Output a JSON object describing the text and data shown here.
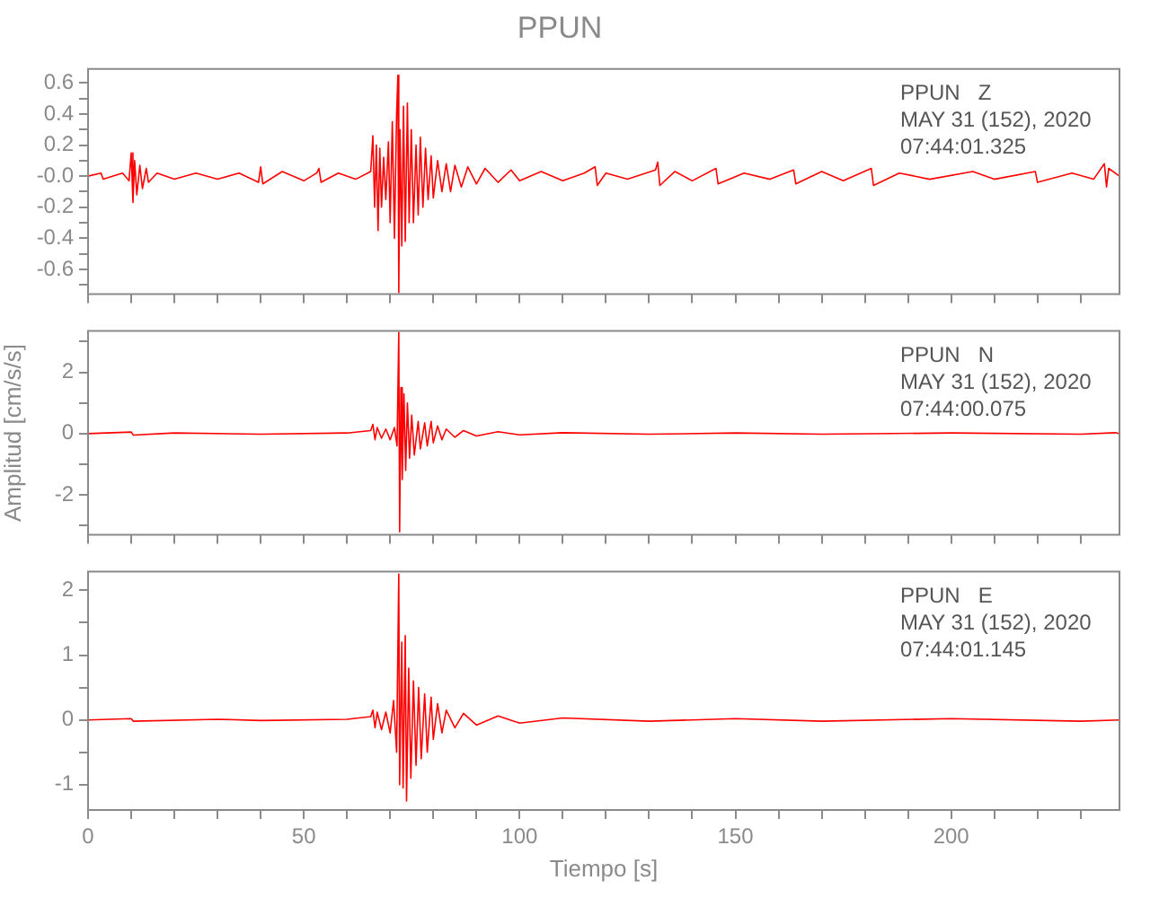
{
  "chart_data": [
    {
      "type": "line",
      "title": "PPUN",
      "tick_labels": "y",
      "grid": false,
      "legend": false,
      "marker": "none",
      "line_style": "solid",
      "annotations": [
        "PPUN   Z",
        "MAY 31 (152), 2020",
        "07:44:01.325"
      ],
      "xlim": [
        0,
        239
      ],
      "xticks": [
        0,
        {
          "value": 10,
          "label": null
        },
        {
          "value": 20,
          "label": null
        },
        {
          "value": 30,
          "label": null
        },
        {
          "value": 40,
          "label": null
        },
        50,
        {
          "value": 60,
          "label": null
        },
        {
          "value": 70,
          "label": null
        },
        {
          "value": 80,
          "label": null
        },
        {
          "value": 90,
          "label": null
        },
        100,
        {
          "value": 110,
          "label": null
        },
        {
          "value": 120,
          "label": null
        },
        {
          "value": 130,
          "label": null
        },
        {
          "value": 140,
          "label": null
        },
        150,
        {
          "value": 160,
          "label": null
        },
        {
          "value": 170,
          "label": null
        },
        {
          "value": 180,
          "label": null
        },
        {
          "value": 190,
          "label": null
        },
        200,
        {
          "value": 210,
          "label": null
        },
        {
          "value": 220,
          "label": null
        },
        {
          "value": 230,
          "label": null
        }
      ],
      "ylim": [
        -0.76,
        0.69
      ],
      "yticks": [
        {
          "value": -0.7,
          "label": null
        },
        -0.6,
        {
          "value": -0.5,
          "label": null
        },
        -0.4,
        {
          "value": -0.3,
          "label": null
        },
        -0.2,
        {
          "value": -0.1,
          "label": null
        },
        {
          "value": 0,
          "label": "-0.0"
        },
        {
          "value": 0.1,
          "label": null
        },
        0.2,
        {
          "value": 0.3,
          "label": null
        },
        0.4,
        {
          "value": 0.5,
          "label": null
        },
        0.6
      ],
      "series": [
        {
          "color": "#ff0000",
          "x": [
            0,
            3,
            3.5,
            8,
            9.5,
            10,
            10.4,
            10.8,
            11.3,
            12,
            12.6,
            13.5,
            14,
            16,
            20,
            25,
            30,
            35,
            39.5,
            40,
            40.5,
            45,
            50,
            53,
            53.5,
            54,
            58,
            62,
            65.5,
            66,
            66.4,
            66.8,
            67.2,
            67.6,
            68,
            68.5,
            69,
            69.6,
            70,
            70.5,
            71,
            71.5,
            71.8,
            72,
            72.3,
            72.7,
            73.1,
            73.5,
            74,
            74.4,
            74.9,
            75.4,
            76,
            76.5,
            77,
            77.6,
            78.2,
            78.8,
            79.5,
            80,
            81,
            82,
            83,
            84,
            85,
            86.5,
            88,
            90,
            92,
            95,
            98,
            100,
            105,
            110,
            115,
            117.5,
            118,
            120,
            125,
            131.5,
            132,
            132.5,
            136,
            140,
            145.5,
            146,
            152,
            158,
            163.5,
            164,
            170,
            175,
            181.5,
            182,
            188,
            195,
            205,
            210,
            219.5,
            220,
            228,
            233,
            235.5,
            236,
            236.5,
            239
          ],
          "values": [
            0,
            0.02,
            -0.02,
            0.02,
            -0.03,
            0.15,
            -0.17,
            0.1,
            -0.12,
            0.07,
            -0.08,
            0.05,
            -0.04,
            0.02,
            -0.02,
            0.02,
            -0.02,
            0.02,
            -0.04,
            0.06,
            -0.05,
            0.03,
            -0.03,
            0.02,
            0.05,
            -0.04,
            0.02,
            -0.02,
            0.03,
            0.26,
            -0.2,
            0.2,
            -0.35,
            0.18,
            -0.2,
            0.12,
            -0.15,
            0.22,
            -0.3,
            0.35,
            -0.4,
            0.4,
            0.65,
            -0.75,
            0.3,
            -0.45,
            0.45,
            -0.42,
            0.47,
            -0.3,
            0.3,
            -0.3,
            0.2,
            -0.25,
            0.25,
            -0.2,
            0.18,
            -0.15,
            0.13,
            -0.14,
            0.1,
            -0.1,
            0.08,
            -0.1,
            0.07,
            -0.07,
            0.06,
            -0.05,
            0.05,
            -0.04,
            0.04,
            -0.03,
            0.03,
            -0.03,
            0.02,
            0.06,
            -0.06,
            0.02,
            -0.02,
            0.04,
            0.09,
            -0.06,
            0.03,
            -0.03,
            0.05,
            -0.05,
            0.02,
            -0.02,
            0.04,
            -0.05,
            0.03,
            -0.03,
            0.05,
            -0.06,
            0.02,
            -0.02,
            0.03,
            -0.02,
            0.03,
            -0.04,
            0.02,
            -0.02,
            0.08,
            -0.07,
            0.05,
            0
          ]
        }
      ]
    },
    {
      "type": "line",
      "ylabel": "Amplitud [cm/s/s]",
      "tick_labels": "y",
      "grid": false,
      "legend": false,
      "marker": "none",
      "line_style": "solid",
      "annotations": [
        "PPUN   N",
        "MAY 31 (152), 2020",
        "07:44:00.075"
      ],
      "xlim": [
        0,
        239
      ],
      "xticks": [
        0,
        {
          "value": 10,
          "label": null
        },
        {
          "value": 20,
          "label": null
        },
        {
          "value": 30,
          "label": null
        },
        {
          "value": 40,
          "label": null
        },
        50,
        {
          "value": 60,
          "label": null
        },
        {
          "value": 70,
          "label": null
        },
        {
          "value": 80,
          "label": null
        },
        {
          "value": 90,
          "label": null
        },
        100,
        {
          "value": 110,
          "label": null
        },
        {
          "value": 120,
          "label": null
        },
        {
          "value": 130,
          "label": null
        },
        {
          "value": 140,
          "label": null
        },
        150,
        {
          "value": 160,
          "label": null
        },
        {
          "value": 170,
          "label": null
        },
        {
          "value": 180,
          "label": null
        },
        {
          "value": 190,
          "label": null
        },
        200,
        {
          "value": 210,
          "label": null
        },
        {
          "value": 220,
          "label": null
        },
        {
          "value": 230,
          "label": null
        }
      ],
      "ylim": [
        -3.3,
        3.35
      ],
      "yticks": [
        {
          "value": -3,
          "label": null
        },
        -2,
        {
          "value": -1,
          "label": null
        },
        0,
        {
          "value": 1,
          "label": null
        },
        2,
        {
          "value": 3,
          "label": null
        }
      ],
      "series": [
        {
          "color": "#ff0000",
          "x": [
            0,
            10,
            10.5,
            20,
            40,
            60,
            65.5,
            66,
            66.5,
            67,
            68,
            69,
            70,
            71,
            71.6,
            72,
            72.2,
            72.5,
            72.8,
            73.2,
            73.6,
            74,
            74.5,
            75,
            75.6,
            76.5,
            77,
            78,
            78.6,
            79.5,
            80,
            81,
            82,
            83,
            85,
            87,
            90,
            95,
            100,
            110,
            130,
            150,
            170,
            200,
            230,
            238,
            239
          ],
          "values": [
            0,
            0.05,
            -0.05,
            0.02,
            -0.02,
            0.02,
            0.1,
            0.3,
            -0.2,
            0.2,
            -0.15,
            0.15,
            -0.2,
            0.2,
            -0.4,
            3.3,
            -3.2,
            1.5,
            -1.5,
            1.3,
            -1.2,
            1.0,
            -0.8,
            0.6,
            -0.7,
            0.4,
            -0.5,
            0.35,
            -0.4,
            0.4,
            -0.3,
            0.25,
            -0.2,
            0.15,
            -0.12,
            0.1,
            -0.08,
            0.06,
            -0.04,
            0.03,
            -0.02,
            0.02,
            -0.02,
            0.02,
            -0.02,
            0.03,
            0
          ]
        }
      ]
    },
    {
      "type": "line",
      "xlabel": "Tiempo [s]",
      "grid": false,
      "legend": false,
      "marker": "none",
      "line_style": "solid",
      "annotations": [
        "PPUN   E",
        "MAY 31 (152), 2020",
        "07:44:01.145"
      ],
      "xlim": [
        0,
        239
      ],
      "xticks": [
        0,
        {
          "value": 10,
          "label": null
        },
        {
          "value": 20,
          "label": null
        },
        {
          "value": 30,
          "label": null
        },
        {
          "value": 40,
          "label": null
        },
        50,
        {
          "value": 60,
          "label": null
        },
        {
          "value": 70,
          "label": null
        },
        {
          "value": 80,
          "label": null
        },
        {
          "value": 90,
          "label": null
        },
        100,
        {
          "value": 110,
          "label": null
        },
        {
          "value": 120,
          "label": null
        },
        {
          "value": 130,
          "label": null
        },
        {
          "value": 140,
          "label": null
        },
        150,
        {
          "value": 160,
          "label": null
        },
        {
          "value": 170,
          "label": null
        },
        {
          "value": 180,
          "label": null
        },
        {
          "value": 190,
          "label": null
        },
        200,
        {
          "value": 210,
          "label": null
        },
        {
          "value": 220,
          "label": null
        },
        {
          "value": 230,
          "label": null
        }
      ],
      "ylim": [
        -1.39,
        2.29
      ],
      "yticks": [
        -1,
        {
          "value": -0.5,
          "label": null
        },
        0,
        {
          "value": 0.5,
          "label": null
        },
        1,
        {
          "value": 1.5,
          "label": null
        },
        2
      ],
      "series": [
        {
          "color": "#ff0000",
          "x": [
            0,
            10,
            10.5,
            30,
            40,
            60,
            65.5,
            66,
            66.5,
            67,
            68,
            69,
            70,
            70.8,
            71.5,
            72,
            72.2,
            72.7,
            73,
            73.5,
            73.8,
            74.3,
            74.8,
            75.4,
            76,
            76.6,
            77.2,
            78,
            78.6,
            79.5,
            80,
            81,
            82,
            83,
            85,
            87,
            90,
            95,
            100,
            110,
            130,
            150,
            170,
            200,
            230,
            239
          ],
          "values": [
            0,
            0.02,
            -0.02,
            0.01,
            -0.01,
            0.01,
            0.05,
            0.15,
            -0.12,
            0.12,
            -0.15,
            0.12,
            -0.2,
            0.3,
            -0.5,
            2.25,
            -1.0,
            1.2,
            -1.05,
            1.3,
            -1.25,
            0.8,
            -0.9,
            0.6,
            -0.7,
            0.5,
            -0.6,
            0.4,
            -0.5,
            0.35,
            -0.3,
            0.25,
            -0.2,
            0.15,
            -0.12,
            0.1,
            -0.08,
            0.06,
            -0.05,
            0.03,
            -0.02,
            0.02,
            -0.02,
            0.02,
            -0.02,
            0
          ]
        }
      ]
    }
  ]
}
